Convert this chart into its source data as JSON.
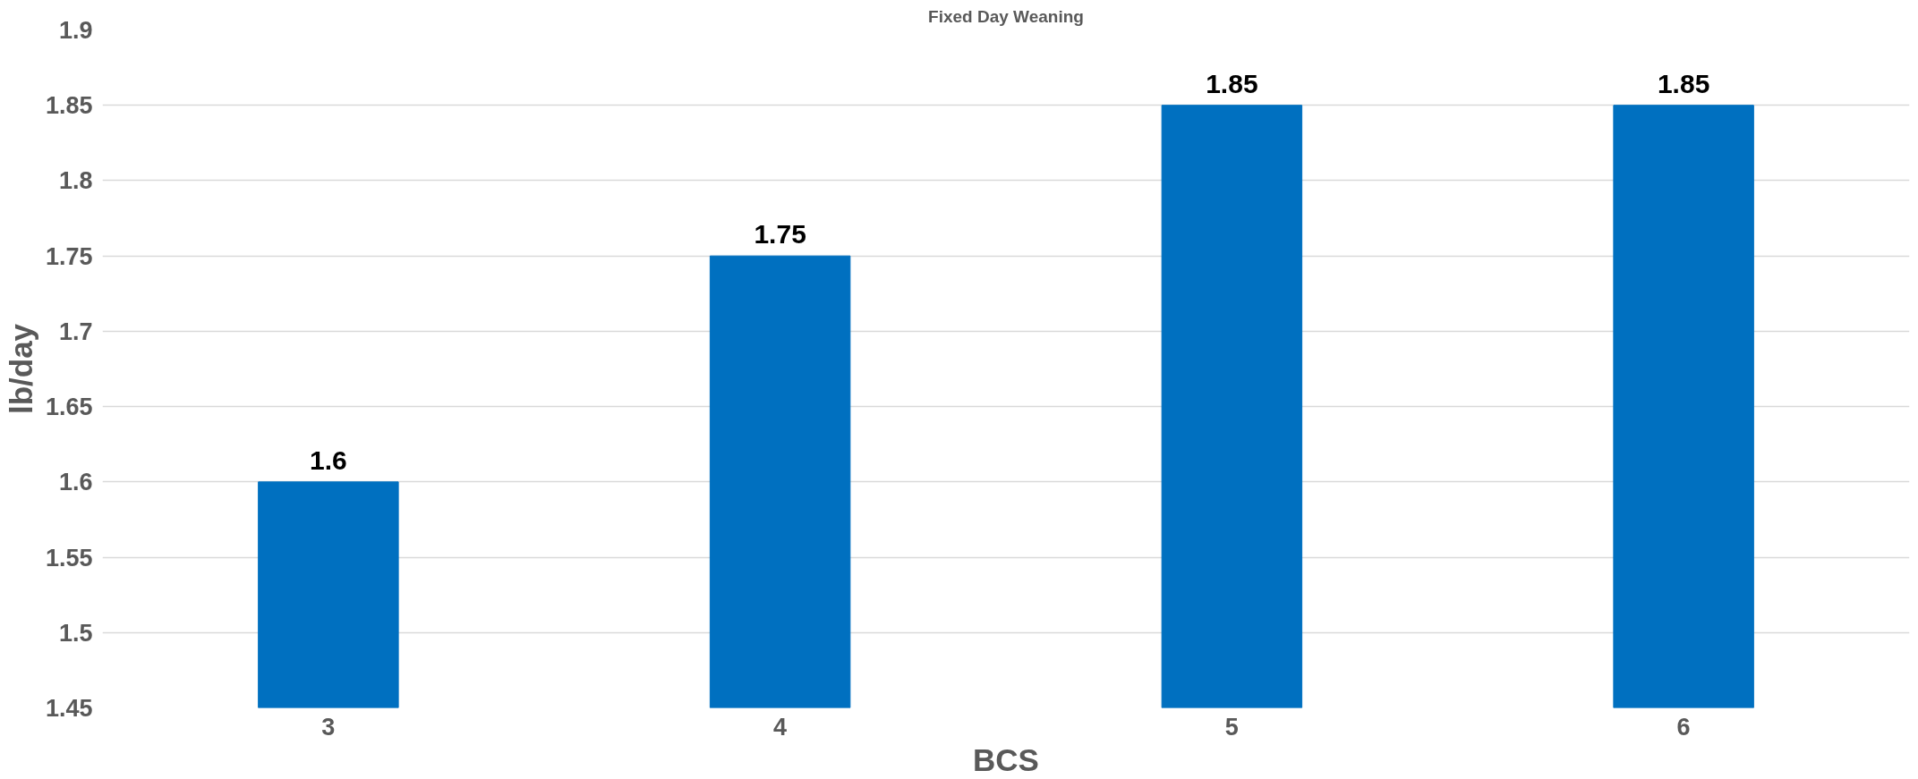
{
  "chart_data": {
    "type": "bar",
    "title": "Fixed Day Weaning",
    "xlabel": "BCS",
    "ylabel": "lb/day",
    "categories": [
      "3",
      "4",
      "5",
      "6"
    ],
    "series": [
      {
        "color": "#0070c0",
        "values": [
          1.6,
          1.75,
          1.85,
          1.85
        ]
      }
    ],
    "ylim": [
      1.45,
      1.9
    ],
    "yticks": [
      1.45,
      1.5,
      1.55,
      1.6,
      1.65,
      1.7,
      1.75,
      1.8,
      1.85,
      1.9
    ],
    "grid": "y",
    "data_labels": true
  }
}
